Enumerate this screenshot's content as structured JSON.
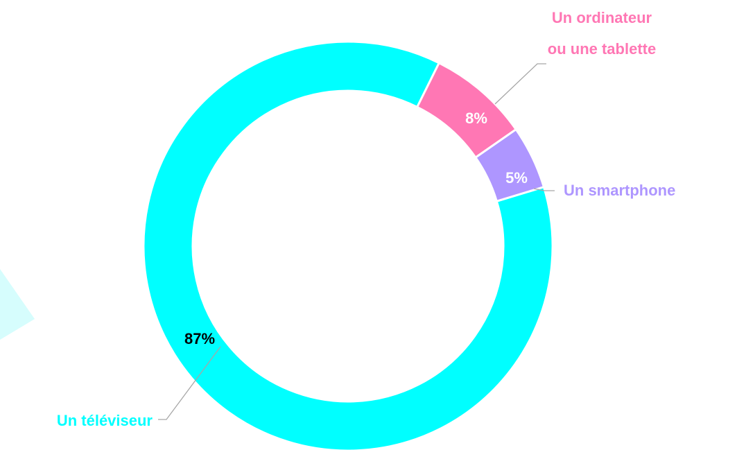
{
  "chart_data": {
    "type": "donut",
    "categories": [
      "Un ordinateur ou une tablette",
      "Un smartphone",
      "Un téléviseur"
    ],
    "values": [
      8,
      5,
      87
    ],
    "value_labels": [
      "8%",
      "5%",
      "87%"
    ],
    "colors": [
      "#ff77b4",
      "#ae96ff",
      "#00ffff"
    ]
  }
}
